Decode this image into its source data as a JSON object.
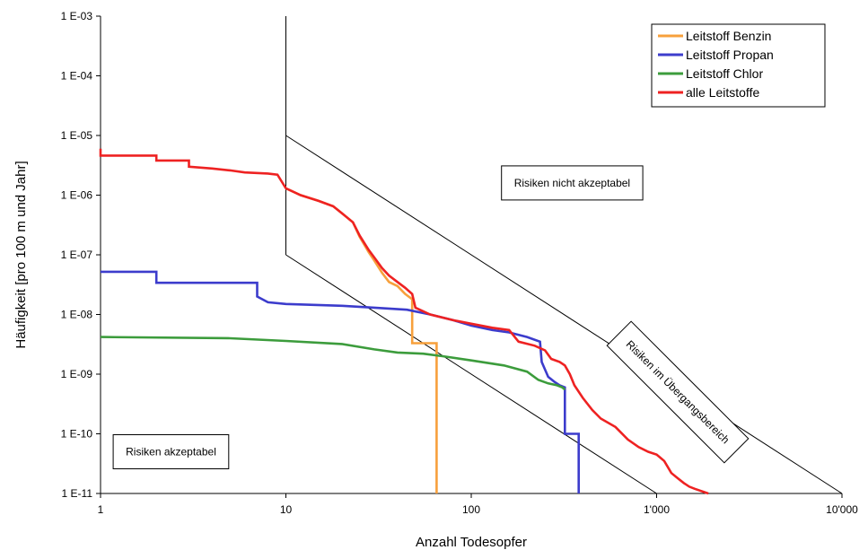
{
  "chart_data": {
    "type": "line",
    "title": "",
    "xlabel": "Anzahl Todesopfer",
    "ylabel": "Häufigkeit [pro 100 m und Jahr]",
    "x_scale": "log",
    "y_scale": "log",
    "xlim": [
      1,
      10000
    ],
    "ylim": [
      1e-11,
      0.001
    ],
    "x_ticks": [
      1,
      10,
      100,
      1000,
      10000
    ],
    "x_tick_labels": [
      "1",
      "10",
      "100",
      "1'000",
      "10'000"
    ],
    "y_ticks": [
      1e-11,
      1e-10,
      1e-09,
      1e-08,
      1e-07,
      1e-06,
      1e-05,
      0.0001,
      0.001
    ],
    "y_tick_labels": [
      "1 E-11",
      "1 E-10",
      "1 E-09",
      "1 E-08",
      "1 E-07",
      "1 E-06",
      "1 E-05",
      "1 E-04",
      "1 E-03"
    ],
    "grid": false,
    "legend_position": "top-right",
    "series": [
      {
        "name": "Leitstoff Benzin",
        "color": "#f7a03c",
        "points": [
          [
            10,
            1.3e-06
          ],
          [
            12,
            1e-06
          ],
          [
            15,
            8e-07
          ],
          [
            18,
            6.5e-07
          ],
          [
            20,
            5e-07
          ],
          [
            23,
            3.5e-07
          ],
          [
            25,
            2e-07
          ],
          [
            28,
            1.1e-07
          ],
          [
            30,
            8e-08
          ],
          [
            33,
            5e-08
          ],
          [
            36,
            3.5e-08
          ],
          [
            40,
            3e-08
          ],
          [
            44,
            2.2e-08
          ],
          [
            48,
            1.8e-08
          ],
          [
            48,
            3.3e-09
          ],
          [
            65,
            3.3e-09
          ],
          [
            65,
            1e-11
          ]
        ]
      },
      {
        "name": "Leitstoff Propan",
        "color": "#3c3ccc",
        "points": [
          [
            1,
            5.2e-08
          ],
          [
            2,
            5.2e-08
          ],
          [
            2,
            3.4e-08
          ],
          [
            7,
            3.4e-08
          ],
          [
            7,
            2e-08
          ],
          [
            8,
            1.6e-08
          ],
          [
            10,
            1.5e-08
          ],
          [
            20,
            1.4e-08
          ],
          [
            30,
            1.3e-08
          ],
          [
            45,
            1.2e-08
          ],
          [
            60,
            1e-08
          ],
          [
            80,
            8e-09
          ],
          [
            100,
            6.5e-09
          ],
          [
            130,
            5.5e-09
          ],
          [
            160,
            5e-09
          ],
          [
            200,
            4.2e-09
          ],
          [
            235,
            3.5e-09
          ],
          [
            240,
            1.6e-09
          ],
          [
            260,
            9e-10
          ],
          [
            280,
            7.5e-10
          ],
          [
            300,
            6.5e-10
          ],
          [
            320,
            6e-10
          ],
          [
            320,
            1e-10
          ],
          [
            380,
            1e-10
          ],
          [
            380,
            1e-11
          ]
        ]
      },
      {
        "name": "Leitstoff Chlor",
        "color": "#3c9c3c",
        "points": [
          [
            1,
            4.2e-09
          ],
          [
            5,
            4e-09
          ],
          [
            10,
            3.6e-09
          ],
          [
            20,
            3.2e-09
          ],
          [
            30,
            2.6e-09
          ],
          [
            40,
            2.3e-09
          ],
          [
            55,
            2.2e-09
          ],
          [
            70,
            2e-09
          ],
          [
            100,
            1.7e-09
          ],
          [
            150,
            1.4e-09
          ],
          [
            200,
            1.1e-09
          ],
          [
            230,
            8e-10
          ],
          [
            260,
            7e-10
          ],
          [
            290,
            6.5e-10
          ],
          [
            310,
            6e-10
          ],
          [
            320,
            5.5e-10
          ]
        ]
      },
      {
        "name": "alle Leitstoffe",
        "color": "#ee2222",
        "points": [
          [
            1,
            6e-06
          ],
          [
            1,
            4.6e-06
          ],
          [
            2,
            4.6e-06
          ],
          [
            2,
            3.8e-06
          ],
          [
            3,
            3.8e-06
          ],
          [
            3,
            3e-06
          ],
          [
            4,
            2.8e-06
          ],
          [
            5,
            2.6e-06
          ],
          [
            6,
            2.4e-06
          ],
          [
            8,
            2.3e-06
          ],
          [
            9,
            2.2e-06
          ],
          [
            10,
            1.3e-06
          ],
          [
            12,
            1e-06
          ],
          [
            15,
            8e-07
          ],
          [
            18,
            6.5e-07
          ],
          [
            20,
            5e-07
          ],
          [
            23,
            3.5e-07
          ],
          [
            25,
            2.1e-07
          ],
          [
            28,
            1.2e-07
          ],
          [
            30,
            9e-08
          ],
          [
            33,
            6e-08
          ],
          [
            36,
            4.5e-08
          ],
          [
            40,
            3.5e-08
          ],
          [
            44,
            2.8e-08
          ],
          [
            48,
            2.2e-08
          ],
          [
            50,
            1.3e-08
          ],
          [
            60,
            1e-08
          ],
          [
            80,
            8e-09
          ],
          [
            100,
            7e-09
          ],
          [
            130,
            6e-09
          ],
          [
            160,
            5.5e-09
          ],
          [
            180,
            3.5e-09
          ],
          [
            220,
            3e-09
          ],
          [
            250,
            2.5e-09
          ],
          [
            270,
            1.8e-09
          ],
          [
            300,
            1.6e-09
          ],
          [
            320,
            1.4e-09
          ],
          [
            340,
            1e-09
          ],
          [
            360,
            6.5e-10
          ],
          [
            400,
            4e-10
          ],
          [
            450,
            2.5e-10
          ],
          [
            500,
            1.8e-10
          ],
          [
            600,
            1.3e-10
          ],
          [
            700,
            8e-11
          ],
          [
            800,
            6e-11
          ],
          [
            900,
            5e-11
          ],
          [
            1000,
            4.5e-11
          ],
          [
            1100,
            3.5e-11
          ],
          [
            1200,
            2.2e-11
          ],
          [
            1300,
            1.8e-11
          ],
          [
            1400,
            1.5e-11
          ],
          [
            1500,
            1.3e-11
          ],
          [
            1600,
            1.2e-11
          ],
          [
            1900,
            1e-11
          ]
        ]
      }
    ],
    "reference_lines": [
      {
        "points": [
          [
            10,
            0.001
          ],
          [
            10,
            1e-07
          ]
        ],
        "color": "#000000"
      },
      {
        "points": [
          [
            10,
            1e-07
          ],
          [
            1000,
            1e-11
          ]
        ],
        "color": "#000000"
      },
      {
        "points": [
          [
            10,
            1e-05
          ],
          [
            10000,
            1e-11
          ]
        ],
        "color": "#000000"
      }
    ],
    "annotations": [
      {
        "text": "Risiken nicht akzeptabel",
        "at": [
          350,
          1.6e-06
        ]
      },
      {
        "text": "Risiken im Übergangsbereich",
        "at": [
          1300,
          5e-10
        ],
        "rotation": 45
      },
      {
        "text": "Risiken akzeptabel",
        "at": [
          2.4,
          5e-11
        ]
      }
    ]
  }
}
